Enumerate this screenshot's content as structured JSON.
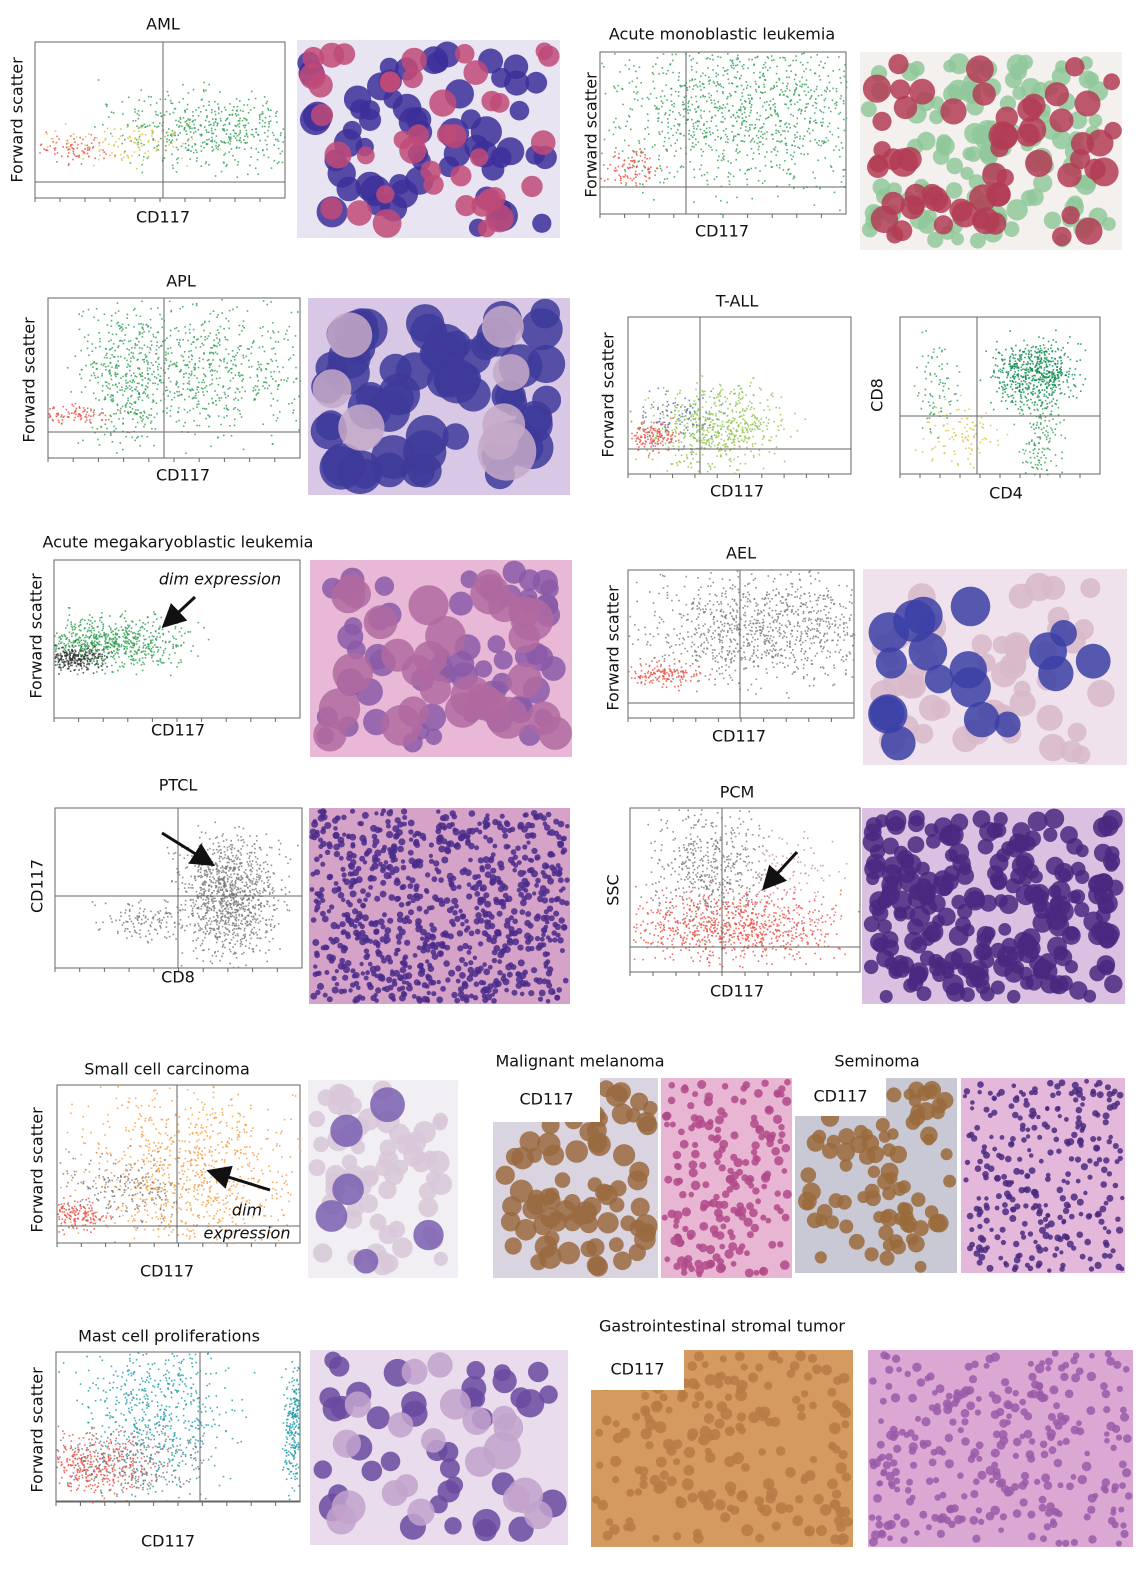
{
  "panels": [
    {
      "title": "AML",
      "plots": [
        {
          "ylabel": "Forward scatter",
          "xlabel": "CD117"
        }
      ]
    },
    {
      "title": "Acute monoblastic leukemia",
      "plots": [
        {
          "ylabel": "Forward scatter",
          "xlabel": "CD117"
        }
      ]
    },
    {
      "title": "APL",
      "plots": [
        {
          "ylabel": "Forward scatter",
          "xlabel": "CD117"
        }
      ]
    },
    {
      "title": "T-ALL",
      "plots": [
        {
          "ylabel": "Forward scatter",
          "xlabel": "CD117"
        },
        {
          "ylabel": "CD8",
          "xlabel": "CD4"
        }
      ]
    },
    {
      "title": "Acute megakaryoblastic leukemia",
      "plots": [
        {
          "ylabel": "Forward scatter",
          "xlabel": "CD117",
          "annotation": [
            "dim expression"
          ]
        }
      ]
    },
    {
      "title": "AEL",
      "plots": [
        {
          "ylabel": "Forward scatter",
          "xlabel": "CD117"
        }
      ]
    },
    {
      "title": "PTCL",
      "plots": [
        {
          "ylabel": "CD117",
          "xlabel": "CD8"
        }
      ]
    },
    {
      "title": "PCM",
      "plots": [
        {
          "ylabel": "SSC",
          "xlabel": "CD117"
        }
      ]
    },
    {
      "title": "Small cell carcinoma",
      "plots": [
        {
          "ylabel": "Forward scatter",
          "xlabel": "CD117",
          "annotation": [
            "dim",
            "expression"
          ]
        }
      ]
    },
    {
      "title": "Malignant melanoma",
      "stain_label": "CD117"
    },
    {
      "title": "Seminoma",
      "stain_label": "CD117"
    },
    {
      "title": "Mast cell proliferations",
      "plots": [
        {
          "ylabel": "Forward scatter",
          "xlabel": "CD117"
        }
      ]
    },
    {
      "title": "Gastrointestinal stromal tumor",
      "stain_label": "CD117"
    }
  ]
}
